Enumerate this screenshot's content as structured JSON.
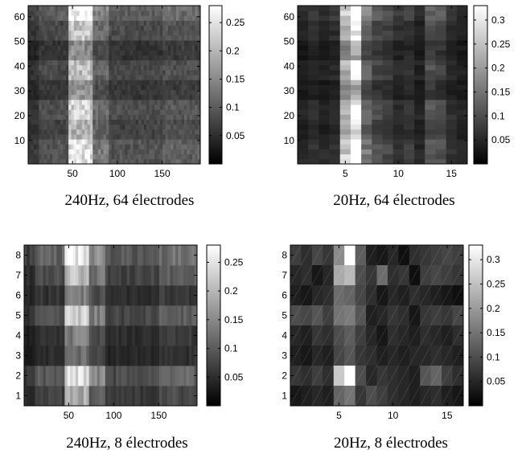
{
  "figure": {
    "colormap": "gray",
    "colormap_stops": [
      "#000000",
      "#ffffff"
    ]
  },
  "chart_data": [
    {
      "type": "heatmap",
      "caption": "240Hz, 64 électrodes",
      "n_time_bins": 192,
      "n_electrodes": 64,
      "xlim": [
        1,
        192
      ],
      "ylim": [
        1,
        64
      ],
      "xticks": [
        50,
        100,
        150
      ],
      "yticks": [
        10,
        20,
        30,
        40,
        50,
        60
      ],
      "colorbar": {
        "min": 0,
        "max": 0.28,
        "ticks": [
          0.05,
          0.1,
          0.15,
          0.2,
          0.25
        ]
      },
      "column_profile": [
        {
          "x": [
            1,
            12
          ],
          "level": 0.05
        },
        {
          "x": [
            12,
            45
          ],
          "level": 0.07
        },
        {
          "x": [
            45,
            72
          ],
          "level": 0.19
        },
        {
          "x": [
            72,
            90
          ],
          "level": 0.1
        },
        {
          "x": [
            90,
            150
          ],
          "level": 0.07
        },
        {
          "x": [
            150,
            192
          ],
          "level": 0.08
        }
      ],
      "row_profile": [
        {
          "y": [
            1,
            9
          ],
          "level": 1.3
        },
        {
          "y": [
            9,
            17
          ],
          "level": 1.05
        },
        {
          "y": [
            17,
            25
          ],
          "level": 1.2
        },
        {
          "y": [
            25,
            33
          ],
          "level": 0.85
        },
        {
          "y": [
            33,
            41
          ],
          "level": 1.1
        },
        {
          "y": [
            41,
            49
          ],
          "level": 0.8
        },
        {
          "y": [
            49,
            57
          ],
          "level": 1.15
        },
        {
          "y": [
            57,
            64
          ],
          "level": 1.45
        }
      ]
    },
    {
      "type": "heatmap",
      "caption": "20Hz, 64 électrodes",
      "n_time_bins": 16,
      "n_electrodes": 64,
      "xlim": [
        1,
        16
      ],
      "ylim": [
        1,
        64
      ],
      "xticks": [
        5,
        10,
        15
      ],
      "yticks": [
        10,
        20,
        30,
        40,
        50,
        60
      ],
      "colorbar": {
        "min": 0,
        "max": 0.33,
        "ticks": [
          0.05,
          0.1,
          0.15,
          0.2,
          0.25,
          0.3
        ]
      },
      "column_profile": [
        0.04,
        0.05,
        0.04,
        0.05,
        0.2,
        0.28,
        0.12,
        0.08,
        0.07,
        0.05,
        0.06,
        0.04,
        0.09,
        0.08,
        0.05,
        0.04
      ],
      "row_profile": [
        {
          "y": [
            1,
            9
          ],
          "level": 1.3
        },
        {
          "y": [
            9,
            17
          ],
          "level": 1.0
        },
        {
          "y": [
            17,
            25
          ],
          "level": 1.2
        },
        {
          "y": [
            25,
            33
          ],
          "level": 0.8
        },
        {
          "y": [
            33,
            41
          ],
          "level": 1.1
        },
        {
          "y": [
            41,
            49
          ],
          "level": 0.8
        },
        {
          "y": [
            49,
            57
          ],
          "level": 1.15
        },
        {
          "y": [
            57,
            64
          ],
          "level": 1.45
        }
      ]
    },
    {
      "type": "heatmap",
      "caption": "240Hz, 8 électrodes",
      "n_time_bins": 192,
      "n_electrodes": 8,
      "xlim": [
        1,
        192
      ],
      "ylim": [
        1,
        8
      ],
      "xticks": [
        50,
        100,
        150
      ],
      "yticks": [
        1,
        2,
        3,
        4,
        5,
        6,
        7,
        8
      ],
      "colorbar": {
        "min": 0,
        "max": 0.28,
        "ticks": [
          0.05,
          0.1,
          0.15,
          0.2,
          0.25
        ]
      },
      "column_profile": [
        {
          "x": [
            1,
            12
          ],
          "level": 0.05
        },
        {
          "x": [
            12,
            45
          ],
          "level": 0.08
        },
        {
          "x": [
            45,
            72
          ],
          "level": 0.2
        },
        {
          "x": [
            72,
            90
          ],
          "level": 0.12
        },
        {
          "x": [
            90,
            150
          ],
          "level": 0.07
        },
        {
          "x": [
            150,
            192
          ],
          "level": 0.09
        }
      ],
      "row_profile": [
        0.9,
        1.2,
        0.6,
        0.7,
        1.1,
        0.7,
        1.05,
        1.35
      ]
    },
    {
      "type": "heatmap",
      "caption": "20Hz, 8 électrodes",
      "n_time_bins": 16,
      "n_electrodes": 8,
      "xlim": [
        1,
        16
      ],
      "ylim": [
        1,
        8
      ],
      "xticks": [
        5,
        10,
        15
      ],
      "yticks": [
        1,
        2,
        3,
        4,
        5,
        6,
        7,
        8
      ],
      "colorbar": {
        "min": 0,
        "max": 0.33,
        "ticks": [
          0.05,
          0.1,
          0.15,
          0.2,
          0.25,
          0.3
        ]
      },
      "matrix_top_to_bottom": [
        [
          0.08,
          0.06,
          0.09,
          0.07,
          0.18,
          0.33,
          0.12,
          0.04,
          0.03,
          0.05,
          0.02,
          0.06,
          0.07,
          0.08,
          0.09,
          0.08
        ],
        [
          0.05,
          0.06,
          0.03,
          0.05,
          0.22,
          0.24,
          0.1,
          0.07,
          0.14,
          0.06,
          0.07,
          0.02,
          0.08,
          0.09,
          0.08,
          0.07
        ],
        [
          0.04,
          0.03,
          0.05,
          0.06,
          0.14,
          0.13,
          0.09,
          0.06,
          0.03,
          0.05,
          0.04,
          0.06,
          0.05,
          0.04,
          0.03,
          0.02
        ],
        [
          0.1,
          0.09,
          0.11,
          0.08,
          0.15,
          0.16,
          0.11,
          0.04,
          0.05,
          0.07,
          0.06,
          0.03,
          0.07,
          0.08,
          0.07,
          0.09
        ],
        [
          0.05,
          0.04,
          0.07,
          0.06,
          0.1,
          0.12,
          0.08,
          0.05,
          0.03,
          0.06,
          0.05,
          0.04,
          0.06,
          0.05,
          0.04,
          0.06
        ],
        [
          0.04,
          0.03,
          0.05,
          0.04,
          0.09,
          0.11,
          0.07,
          0.06,
          0.04,
          0.05,
          0.04,
          0.05,
          0.05,
          0.06,
          0.05,
          0.04
        ],
        [
          0.07,
          0.06,
          0.08,
          0.06,
          0.26,
          0.33,
          0.1,
          0.05,
          0.07,
          0.06,
          0.05,
          0.04,
          0.11,
          0.13,
          0.08,
          0.06
        ],
        [
          0.03,
          0.04,
          0.05,
          0.04,
          0.13,
          0.15,
          0.07,
          0.1,
          0.08,
          0.06,
          0.05,
          0.04,
          0.05,
          0.06,
          0.04,
          0.03
        ]
      ]
    }
  ]
}
